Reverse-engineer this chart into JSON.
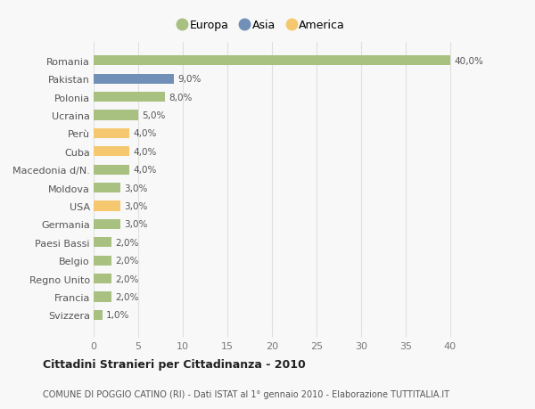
{
  "categories": [
    "Svizzera",
    "Francia",
    "Regno Unito",
    "Belgio",
    "Paesi Bassi",
    "Germania",
    "USA",
    "Moldova",
    "Macedonia d/N.",
    "Cuba",
    "Perù",
    "Ucraina",
    "Polonia",
    "Pakistan",
    "Romania"
  ],
  "values": [
    1.0,
    2.0,
    2.0,
    2.0,
    2.0,
    3.0,
    3.0,
    3.0,
    4.0,
    4.0,
    4.0,
    5.0,
    8.0,
    9.0,
    40.0
  ],
  "colors": [
    "#a8c080",
    "#a8c080",
    "#a8c080",
    "#a8c080",
    "#a8c080",
    "#a8c080",
    "#f5c870",
    "#a8c080",
    "#a8c080",
    "#f5c870",
    "#f5c870",
    "#a8c080",
    "#a8c080",
    "#7090b8",
    "#a8c080"
  ],
  "labels": [
    "1,0%",
    "2,0%",
    "2,0%",
    "2,0%",
    "2,0%",
    "3,0%",
    "3,0%",
    "3,0%",
    "4,0%",
    "4,0%",
    "4,0%",
    "5,0%",
    "8,0%",
    "9,0%",
    "40,0%"
  ],
  "legend_labels": [
    "Europa",
    "Asia",
    "America"
  ],
  "legend_colors": [
    "#a8c080",
    "#7090b8",
    "#f5c870"
  ],
  "title": "Cittadini Stranieri per Cittadinanza - 2010",
  "subtitle": "COMUNE DI POGGIO CATINO (RI) - Dati ISTAT al 1° gennaio 2010 - Elaborazione TUTTITALIA.IT",
  "xlim": [
    0,
    42
  ],
  "xticks": [
    0,
    5,
    10,
    15,
    20,
    25,
    30,
    35,
    40
  ],
  "background_color": "#f8f8f8",
  "grid_color": "#e0e0e0",
  "bar_height": 0.55
}
